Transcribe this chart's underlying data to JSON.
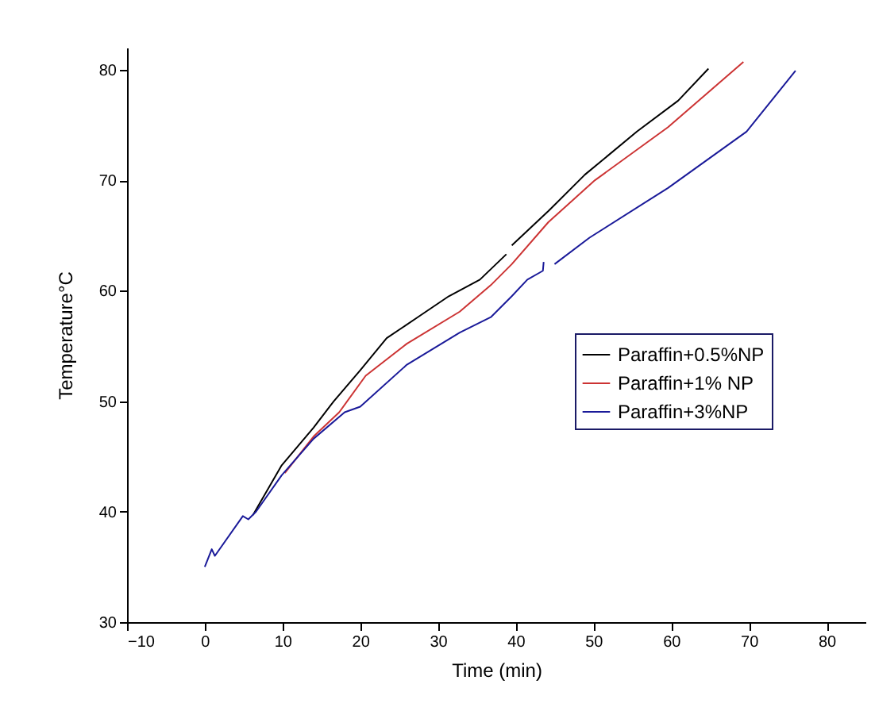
{
  "chart_data": {
    "type": "line",
    "xlabel": "Time (min)",
    "ylabel": "Temperature°C",
    "xlim": [
      -10,
      85
    ],
    "ylim": [
      30,
      82
    ],
    "xticks": [
      -10,
      0,
      10,
      20,
      30,
      40,
      50,
      60,
      70,
      80
    ],
    "yticks": [
      30,
      40,
      50,
      60,
      70,
      80
    ],
    "grid": false,
    "legend": "right",
    "line_style": "solid",
    "marker": "none",
    "series": [
      {
        "name": "Paraffin+0.5%NP",
        "color": "#000000",
        "x": [
          6.2,
          9.9,
          14,
          16.6,
          20,
          23.4,
          27.4,
          31.4,
          35.4,
          38.8,
          null,
          39.5,
          44.2,
          48.9,
          55.6,
          60.9,
          64.8
        ],
        "values": [
          39.7,
          44.2,
          47.6,
          50,
          52.8,
          55.7,
          57.6,
          59.5,
          61,
          63.3,
          null,
          64.1,
          67.2,
          70.5,
          74.4,
          77.2,
          80.1
        ]
      },
      {
        "name": "Paraffin+1% NP",
        "color": "#cc3333",
        "x": [
          10.3,
          14,
          17.3,
          20.7,
          26,
          32.8,
          36.8,
          39.5,
          44.2,
          50.2,
          59.6,
          69.3
        ],
        "values": [
          43.5,
          46.8,
          49,
          52.3,
          55.2,
          58.1,
          60.5,
          62.4,
          66.2,
          70,
          74.8,
          80.7
        ]
      },
      {
        "name": "Paraffin+3%NP",
        "color": "#1a1a99",
        "x": [
          0,
          0.9,
          1.3,
          4.9,
          5.6,
          6.6,
          9.9,
          14,
          18,
          20,
          26,
          32.8,
          36.8,
          39.5,
          41.5,
          43.5,
          43.6,
          null,
          45,
          49.5,
          59.6,
          69.7,
          76
        ],
        "values": [
          35,
          36.6,
          36,
          39.6,
          39.3,
          40,
          43.3,
          46.6,
          49,
          49.5,
          53.3,
          56.2,
          57.6,
          59.5,
          61,
          61.8,
          62.6,
          null,
          62.4,
          64.8,
          69.3,
          74.4,
          79.9
        ]
      }
    ]
  }
}
